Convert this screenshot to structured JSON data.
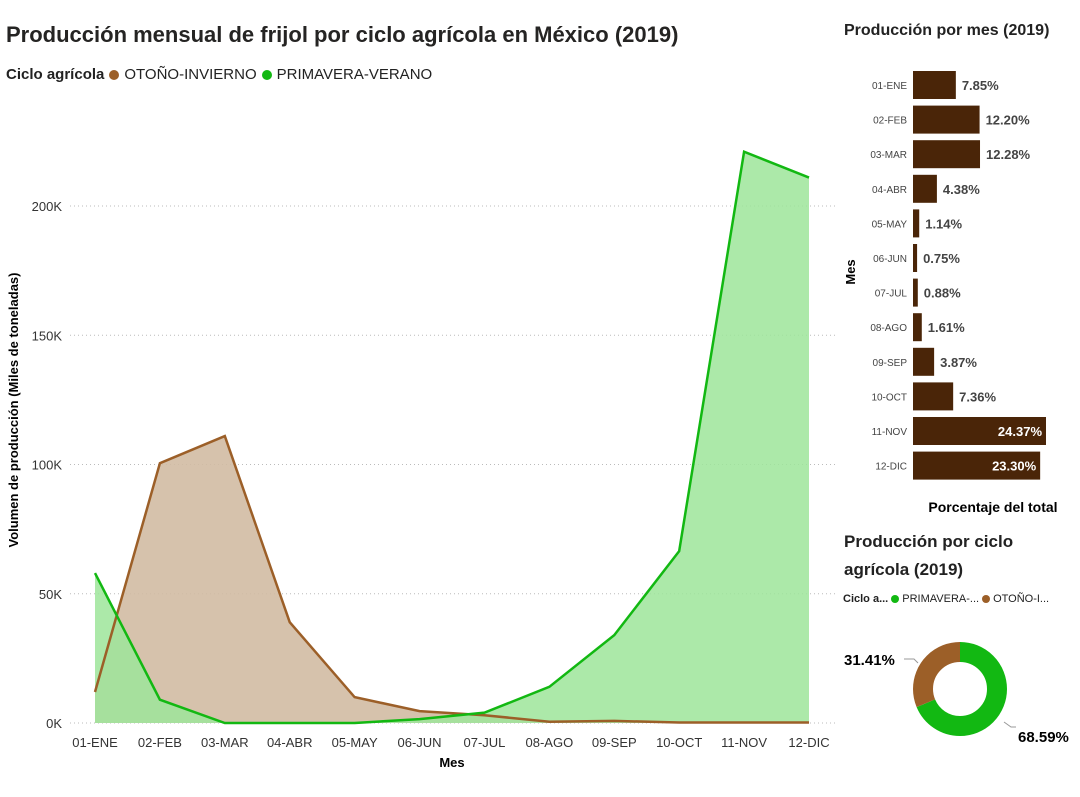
{
  "main": {
    "title": "Producción mensual de frijol por ciclo agrícola en México (2019)",
    "legend_title": "Ciclo agrícola",
    "legend_items": [
      {
        "label": "OTOÑO-INVIERNO",
        "color": "#9C5F28"
      },
      {
        "label": "PRIMAVERA-VERANO",
        "color": "#12B812"
      }
    ]
  },
  "chart_data": [
    {
      "type": "area",
      "title": "Producción mensual de frijol por ciclo agrícola en México (2019)",
      "xlabel": "Mes",
      "ylabel": "Volumen de producción (Miles de toneladas)",
      "categories": [
        "01-ENE",
        "02-FEB",
        "03-MAR",
        "04-ABR",
        "05-MAY",
        "06-JUN",
        "07-JUL",
        "08-AGO",
        "09-SEP",
        "10-OCT",
        "11-NOV",
        "12-DIC"
      ],
      "yticks": [
        "0K",
        "50K",
        "100K",
        "150K",
        "200K"
      ],
      "ylim": [
        0,
        220000
      ],
      "grid": true,
      "legend": "top-left",
      "series": [
        {
          "name": "OTOÑO-INVIERNO",
          "color": "#9C5F28",
          "fill": "#D2BBA3",
          "values": [
            12000,
            100500,
            111000,
            39000,
            10000,
            4600,
            3000,
            500,
            800,
            200,
            200,
            200
          ]
        },
        {
          "name": "PRIMAVERA-VERANO",
          "color": "#12B812",
          "fill": "#9EE59A",
          "values": [
            58000,
            9000,
            0,
            0,
            0,
            1500,
            4000,
            14000,
            34000,
            66500,
            221000,
            211000
          ]
        }
      ]
    },
    {
      "type": "bar",
      "orientation": "horizontal",
      "title": "Producción por mes (2019)",
      "xlabel": "Porcentaje del total",
      "ylabel": "Mes",
      "categories": [
        "01-ENE",
        "02-FEB",
        "03-MAR",
        "04-ABR",
        "05-MAY",
        "06-JUN",
        "07-JUL",
        "08-AGO",
        "09-SEP",
        "10-OCT",
        "11-NOV",
        "12-DIC"
      ],
      "values": [
        7.85,
        12.2,
        12.28,
        4.38,
        1.14,
        0.75,
        0.88,
        1.61,
        3.87,
        7.36,
        24.37,
        23.3
      ],
      "labels": [
        "7.85%",
        "12.20%",
        "12.28%",
        "4.38%",
        "1.14%",
        "0.75%",
        "0.88%",
        "1.61%",
        "3.87%",
        "7.36%",
        "24.37%",
        "23.30%"
      ],
      "color": "#4A2508"
    },
    {
      "type": "pie",
      "donut": true,
      "title": "Producción por ciclo agrícola (2019)",
      "legend_title": "Ciclo a...",
      "legend": "top",
      "slices": [
        {
          "name": "PRIMAVERA-...",
          "value": 68.59,
          "label": "68.59%",
          "color": "#12B812"
        },
        {
          "name": "OTOÑO-I...",
          "value": 31.41,
          "label": "31.41%",
          "color": "#9C5F28"
        }
      ]
    }
  ]
}
